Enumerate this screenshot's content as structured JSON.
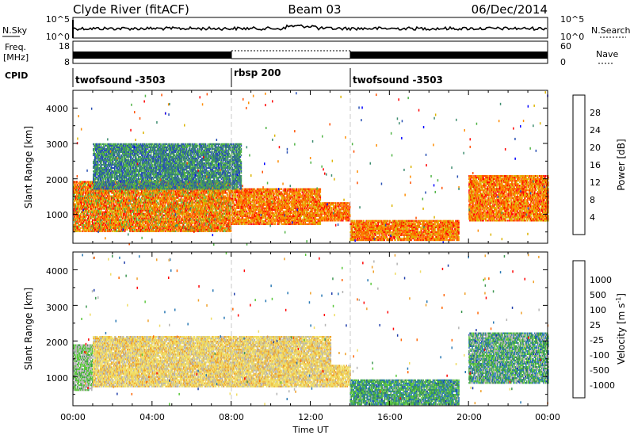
{
  "header": {
    "station": "Clyde River (fitACF)",
    "beam": "Beam 03",
    "date": "06/Dec/2014"
  },
  "top_panels": {
    "noise_label_left": "N.Sky",
    "noise_label_right": "N.Search",
    "noise_ticks_left": [
      "10^5",
      "10^0"
    ],
    "noise_ticks_right": [
      "10^5",
      "10^0"
    ],
    "freq_label_line1": "Freq.",
    "freq_label_line2": "[MHz]",
    "freq_ticks": [
      "18",
      "8"
    ],
    "nave_label": "Nave",
    "nave_ticks": [
      "60",
      "0"
    ],
    "cpid_label": "CPID",
    "cpid_segments": [
      {
        "name": "twofsound -3503",
        "start_hour": 0,
        "end_hour": 8
      },
      {
        "name": "rbsp 200",
        "start_hour": 8,
        "end_hour": 14
      },
      {
        "name": "twofsound -3503",
        "start_hour": 14,
        "end_hour": 24
      }
    ]
  },
  "power_panel": {
    "ylabel": "Slant Range [km]",
    "yticks": [
      "1000",
      "2000",
      "3000",
      "4000"
    ],
    "colorbar_label": "Power [dB]",
    "colorbar_ticks": [
      "28",
      "24",
      "20",
      "16",
      "12",
      "8",
      "4"
    ],
    "colors": [
      "#0000ff",
      "#2850b4",
      "#3c8c6e",
      "#50b446",
      "#dcb400",
      "#ff8c00",
      "#ff5000",
      "#ff0000"
    ]
  },
  "velocity_panel": {
    "ylabel": "Slant Range [km]",
    "yticks": [
      "1000",
      "2000",
      "3000",
      "4000"
    ],
    "colorbar_label": "Velocity [m s",
    "colorbar_label_sup": "-1",
    "colorbar_label_end": "]",
    "colorbar_ticks": [
      "1000",
      "500",
      "100",
      "25",
      "-25",
      "-100",
      "-500",
      "-1000"
    ],
    "colors": [
      "#1e3caa",
      "#2878b4",
      "#3c9650",
      "#5ac83c",
      "#b4b4b4",
      "#f0dc64",
      "#f0a028",
      "#ff6400",
      "#ff0000"
    ]
  },
  "x_axis": {
    "label": "Time UT",
    "ticks": [
      "00:00",
      "04:00",
      "08:00",
      "12:00",
      "16:00",
      "20:00",
      "00:00"
    ]
  },
  "chart_data": {
    "type": "heatmap",
    "x_range_hours": [
      0,
      24
    ],
    "y_range_km": [
      180,
      4500
    ],
    "power_db_range": [
      0,
      32
    ],
    "velocity_range": [
      -1250,
      1250
    ],
    "power_regions": [
      {
        "t0": 0.0,
        "t1": 8.0,
        "r0": 500,
        "r1": 1900,
        "v_min": 14,
        "v_max": 30
      },
      {
        "t0": 8.0,
        "t1": 12.5,
        "r0": 700,
        "r1": 1700,
        "v_min": 16,
        "v_max": 30
      },
      {
        "t0": 12.5,
        "t1": 14.0,
        "r0": 800,
        "r1": 1300,
        "v_min": 18,
        "v_max": 30
      },
      {
        "t0": 14.0,
        "t1": 19.5,
        "r0": 250,
        "r1": 800,
        "v_min": 16,
        "v_max": 30
      },
      {
        "t0": 20.0,
        "t1": 24.0,
        "r0": 800,
        "r1": 2100,
        "v_min": 16,
        "v_max": 30
      },
      {
        "t0": 1.0,
        "t1": 8.5,
        "r0": 1700,
        "r1": 3000,
        "v_min": 4,
        "v_max": 16
      }
    ],
    "velocity_regions": [
      {
        "t0": 0.0,
        "t1": 1.0,
        "r0": 600,
        "r1": 1900,
        "v_min": -100,
        "v_max": 500
      },
      {
        "t0": 1.0,
        "t1": 13.0,
        "r0": 700,
        "r1": 2100,
        "v_min": -500,
        "v_max": -25
      },
      {
        "t0": 13.0,
        "t1": 14.0,
        "r0": 700,
        "r1": 1300,
        "v_min": -500,
        "v_max": -100
      },
      {
        "t0": 14.0,
        "t1": 19.5,
        "r0": 200,
        "r1": 900,
        "v_min": 100,
        "v_max": 1000
      },
      {
        "t0": 20.0,
        "t1": 24.0,
        "r0": 800,
        "r1": 2200,
        "v_min": -100,
        "v_max": 1000
      }
    ]
  }
}
